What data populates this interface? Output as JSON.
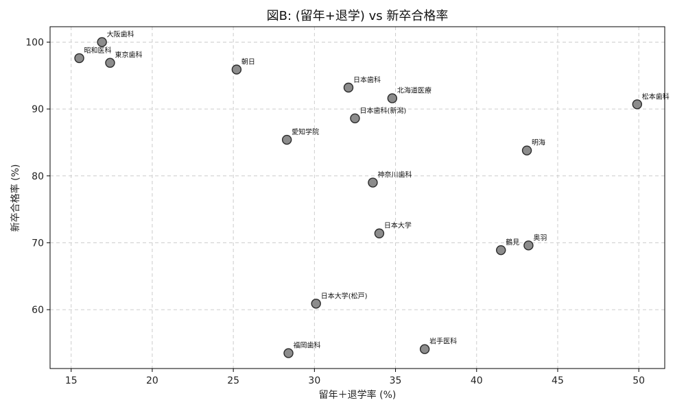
{
  "chart_data": {
    "type": "scatter",
    "title": "図B: (留年+退学) vs 新卒合格率",
    "xlabel": "留年＋退学率 (%)",
    "ylabel": "新卒合格率 (%)",
    "xlim": [
      13.7,
      51.6
    ],
    "ylim": [
      51.2,
      102.3
    ],
    "xticks": [
      15,
      20,
      25,
      30,
      35,
      40,
      45,
      50
    ],
    "yticks": [
      60,
      70,
      80,
      90,
      100
    ],
    "grid": true,
    "point_color": "#8c8c8c",
    "edge_color": "#2a2a2a",
    "points": [
      {
        "label": "大阪歯科",
        "x": 16.9,
        "y": 100.0
      },
      {
        "label": "昭和医科",
        "x": 15.5,
        "y": 97.6
      },
      {
        "label": "東京歯科",
        "x": 17.4,
        "y": 96.9
      },
      {
        "label": "朝日",
        "x": 25.2,
        "y": 95.9
      },
      {
        "label": "日本歯科",
        "x": 32.1,
        "y": 93.2
      },
      {
        "label": "北海道医療",
        "x": 34.8,
        "y": 91.6
      },
      {
        "label": "松本歯科",
        "x": 49.9,
        "y": 90.7
      },
      {
        "label": "日本歯科(新潟)",
        "x": 32.5,
        "y": 88.6
      },
      {
        "label": "愛知学院",
        "x": 28.3,
        "y": 85.4
      },
      {
        "label": "明海",
        "x": 43.1,
        "y": 83.8
      },
      {
        "label": "神奈川歯科",
        "x": 33.6,
        "y": 79.0
      },
      {
        "label": "日本大学",
        "x": 34.0,
        "y": 71.4
      },
      {
        "label": "奥羽",
        "x": 43.2,
        "y": 69.6
      },
      {
        "label": "鶴見",
        "x": 41.5,
        "y": 68.9
      },
      {
        "label": "日本大学(松戸)",
        "x": 30.1,
        "y": 60.9
      },
      {
        "label": "岩手医科",
        "x": 36.8,
        "y": 54.1
      },
      {
        "label": "福岡歯科",
        "x": 28.4,
        "y": 53.5
      }
    ]
  }
}
